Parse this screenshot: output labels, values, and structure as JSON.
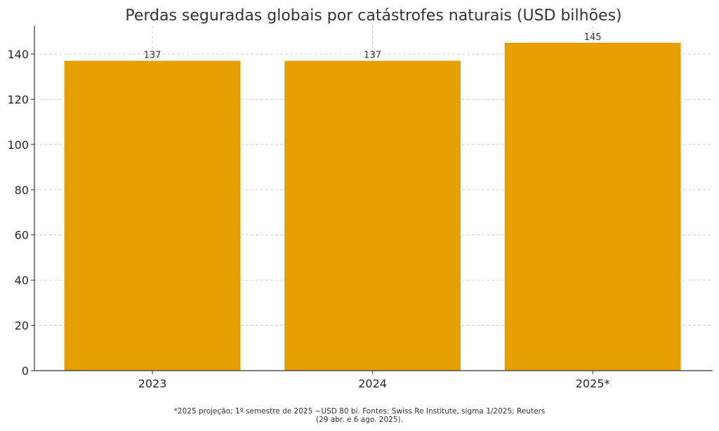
{
  "chart_data": {
    "type": "bar",
    "title": "Perdas seguradas globais por catástrofes naturais (USD bilhões)",
    "categories": [
      "2023",
      "2024",
      "2025*"
    ],
    "values": [
      137,
      137,
      145
    ],
    "data_labels": [
      "137",
      "137",
      "145"
    ],
    "xlabel": "",
    "ylabel": "",
    "ylim": [
      0,
      152.4
    ],
    "yticks": [
      0,
      20,
      40,
      60,
      80,
      100,
      120,
      140
    ],
    "grid": true,
    "bar_color": "#E69F00",
    "footnote_lines": [
      "*2025 projeção; 1º semestre de 2025 ~USD 80 bi. Fontes: Swiss Re Institute, sigma 1/2025; Reuters",
      "(29 abr. e 6 ago. 2025)."
    ]
  }
}
